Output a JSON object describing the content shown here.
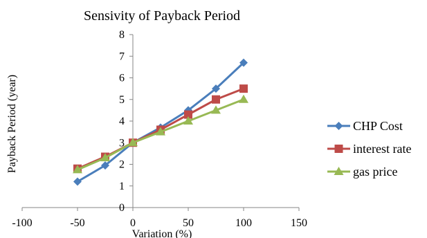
{
  "chart_data": {
    "type": "line",
    "title": "Sensivity of Payback Period",
    "xlabel": "Variation (%)",
    "ylabel": "Payback Period (year)",
    "xlim": [
      -100,
      150
    ],
    "ylim": [
      0,
      8
    ],
    "x_ticks": [
      -100,
      -50,
      0,
      50,
      100,
      150
    ],
    "y_ticks": [
      0,
      1,
      2,
      3,
      4,
      5,
      6,
      7,
      8
    ],
    "x": [
      -50,
      -25,
      0,
      25,
      50,
      75,
      100
    ],
    "grid": false,
    "legend_position": "right",
    "series": [
      {
        "name": "CHP Cost",
        "color": "#4a7ebb",
        "marker": "diamond",
        "values": [
          1.2,
          1.95,
          3.0,
          3.7,
          4.5,
          5.5,
          6.7
        ]
      },
      {
        "name": "interest rate",
        "color": "#be4b48",
        "marker": "square",
        "values": [
          1.8,
          2.35,
          3.0,
          3.6,
          4.3,
          5.0,
          5.5
        ]
      },
      {
        "name": "gas price",
        "color": "#98b954",
        "marker": "triangle",
        "values": [
          1.75,
          2.3,
          3.0,
          3.5,
          4.0,
          4.5,
          5.0
        ]
      }
    ]
  }
}
